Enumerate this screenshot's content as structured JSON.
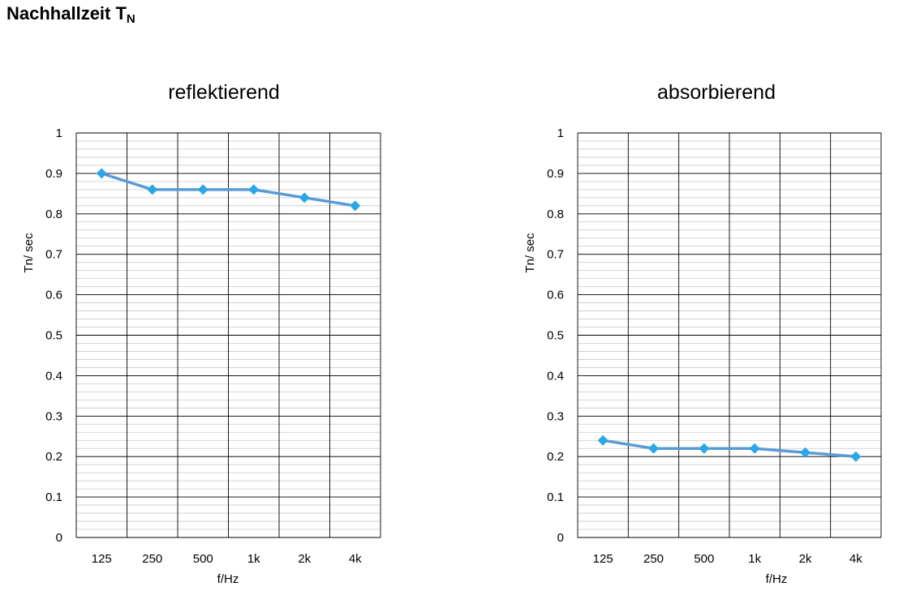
{
  "page": {
    "title_main": "Nachhallzeit T",
    "title_sub": "N"
  },
  "colors": {
    "line": "#5b9bd5",
    "marker": "#2aa7e8",
    "major_grid": "#000000",
    "minor_grid": "#c8c8c8"
  },
  "chart_data": [
    {
      "type": "line",
      "title": "reflektierend",
      "xlabel": "f/Hz",
      "ylabel": "Tn/ sec",
      "categories": [
        "125",
        "250",
        "500",
        "1k",
        "2k",
        "4k"
      ],
      "values": [
        0.9,
        0.86,
        0.86,
        0.86,
        0.84,
        0.82
      ],
      "ylim": [
        0,
        1
      ],
      "yticks": [
        "0",
        "0.1",
        "0.2",
        "0.3",
        "0.4",
        "0.5",
        "0.6",
        "0.7",
        "0.8",
        "0.9",
        "1"
      ],
      "ytick_step": 0.1,
      "yminor_step": 0.02,
      "grid": true,
      "marker": "diamond"
    },
    {
      "type": "line",
      "title": "absorbierend",
      "xlabel": "f/Hz",
      "ylabel": "Tn/ sec",
      "categories": [
        "125",
        "250",
        "500",
        "1k",
        "2k",
        "4k"
      ],
      "values": [
        0.24,
        0.22,
        0.22,
        0.22,
        0.21,
        0.2
      ],
      "ylim": [
        0,
        1
      ],
      "yticks": [
        "0",
        "0.1",
        "0.2",
        "0.3",
        "0.4",
        "0.5",
        "0.6",
        "0.7",
        "0.8",
        "0.9",
        "1"
      ],
      "ytick_step": 0.1,
      "yminor_step": 0.02,
      "grid": true,
      "marker": "diamond"
    }
  ]
}
